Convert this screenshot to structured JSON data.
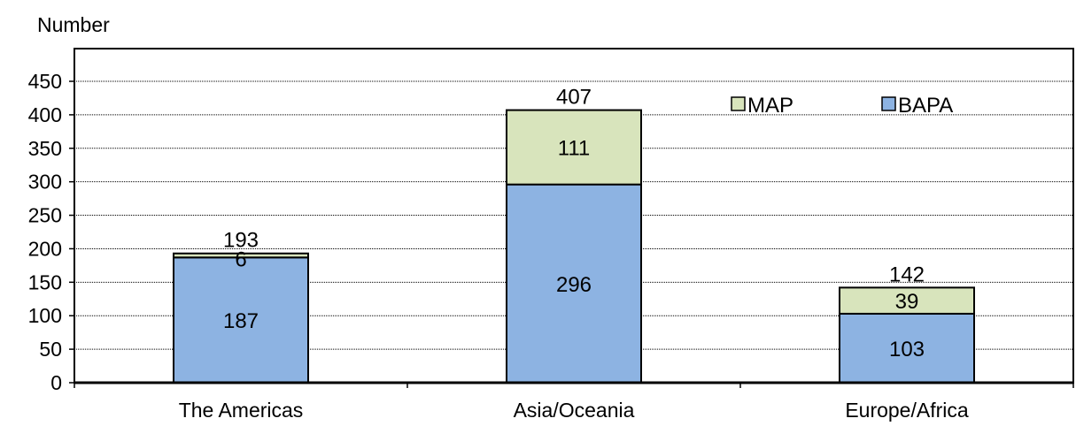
{
  "chart_data": {
    "type": "bar",
    "stacked": true,
    "ylabel": "Number",
    "ylim": [
      0,
      450
    ],
    "ystep": 50,
    "grid": true,
    "legend_position": "top-right",
    "categories": [
      "The Americas",
      "Asia/Oceania",
      "Europe/Africa"
    ],
    "series": [
      {
        "name": "BAPA",
        "values": [
          187,
          296,
          103
        ],
        "color": "#8db3e2"
      },
      {
        "name": "MAP",
        "values": [
          6,
          111,
          39
        ],
        "color": "#d8e4bc"
      }
    ],
    "totals": [
      193,
      407,
      142
    ],
    "legend_order": [
      "MAP",
      "BAPA"
    ]
  }
}
